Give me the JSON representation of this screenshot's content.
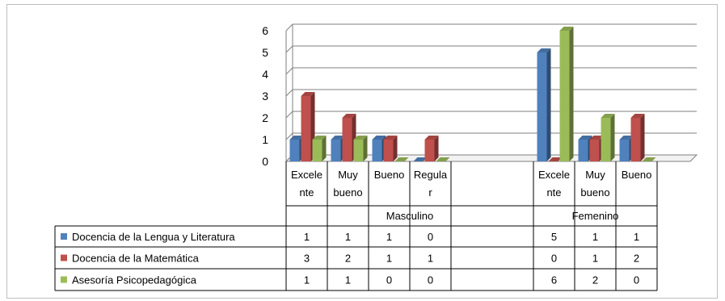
{
  "chart_data": {
    "type": "bar",
    "yticks": [
      "0",
      "1",
      "2",
      "3",
      "4",
      "5",
      "6"
    ],
    "ylim": [
      0,
      6
    ],
    "grid": true,
    "legend": "data-table-left",
    "groups": [
      "Masculino",
      "Femenino"
    ],
    "categories": [
      {
        "lines": [
          "Excele",
          "nte"
        ],
        "group": "Masculino"
      },
      {
        "lines": [
          "Muy",
          "bueno"
        ],
        "group": "Masculino"
      },
      {
        "lines": [
          "Bueno"
        ],
        "group": "Masculino"
      },
      {
        "lines": [
          "Regula",
          "r"
        ],
        "group": "Masculino"
      },
      {
        "lines": [],
        "group": "Masculino"
      },
      {
        "lines": [
          "Excele",
          "nte"
        ],
        "group": "Femenino"
      },
      {
        "lines": [
          "Muy",
          "bueno"
        ],
        "group": "Femenino"
      },
      {
        "lines": [
          "Bueno"
        ],
        "group": "Femenino"
      }
    ],
    "series": [
      {
        "name": "Docencia de la Lengua y Literatura",
        "color": "#4f81bd",
        "values": [
          1,
          1,
          1,
          0,
          null,
          5,
          1,
          1
        ]
      },
      {
        "name": "Docencia de la Matemática",
        "color": "#c0504d",
        "values": [
          3,
          2,
          1,
          1,
          null,
          0,
          1,
          2
        ]
      },
      {
        "name": "Asesoría Psicopedagógica",
        "color": "#9bbb59",
        "values": [
          1,
          1,
          0,
          0,
          null,
          6,
          2,
          0
        ]
      }
    ]
  }
}
